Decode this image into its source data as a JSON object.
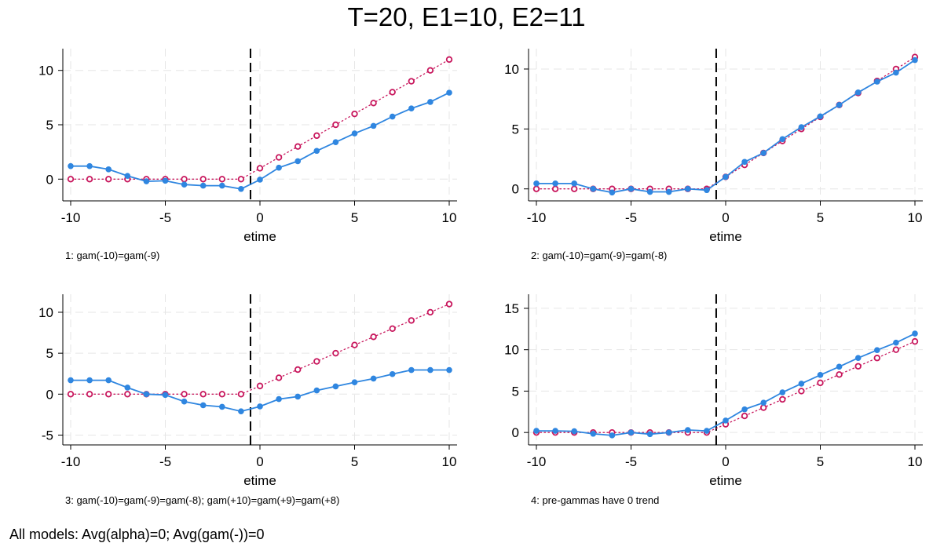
{
  "title": "T=20, E1=10, E2=11",
  "footnote": "All models: Avg(alpha)=0; Avg(gam(-))=0",
  "colors": {
    "estimate": "#2f86e0",
    "truth": "#c8175d",
    "grid": "#e6e6e6",
    "event_line": "#000000"
  },
  "chart_data": [
    {
      "type": "line",
      "note": "1: gam(-10)=gam(-9)",
      "xlabel": "etime",
      "ylabel": "",
      "xlim": [
        -10,
        10
      ],
      "ylim": [
        -2,
        12
      ],
      "xticks": [
        -10,
        -5,
        0,
        5,
        10
      ],
      "yticks": [
        0,
        5,
        10
      ],
      "grid": true,
      "event_line_x": -0.5,
      "x": [
        -10,
        -9,
        -8,
        -7,
        -6,
        -5,
        -4,
        -3,
        -2,
        -1,
        0,
        1,
        2,
        3,
        4,
        5,
        6,
        7,
        8,
        9,
        10
      ],
      "series": [
        {
          "style": "solid-filled",
          "values": [
            1.2,
            1.2,
            0.9,
            0.3,
            -0.2,
            -0.15,
            -0.5,
            -0.6,
            -0.6,
            -0.9,
            -0.05,
            1.05,
            1.65,
            2.6,
            3.4,
            4.2,
            4.9,
            5.75,
            6.5,
            7.1,
            7.95
          ]
        },
        {
          "style": "dotted-hollow",
          "values": [
            0,
            0,
            0,
            0,
            0,
            0,
            0,
            0,
            0,
            0,
            1,
            2,
            3,
            4,
            5,
            6,
            7,
            8,
            9,
            10,
            11
          ]
        }
      ]
    },
    {
      "type": "line",
      "note": "2: gam(-10)=gam(-9)=gam(-8)",
      "xlabel": "etime",
      "ylabel": "",
      "xlim": [
        -10,
        10
      ],
      "ylim": [
        -1,
        11.7
      ],
      "xticks": [
        -10,
        -5,
        0,
        5,
        10
      ],
      "yticks": [
        0,
        5,
        10
      ],
      "grid": true,
      "event_line_x": -0.5,
      "x": [
        -10,
        -9,
        -8,
        -7,
        -6,
        -5,
        -4,
        -3,
        -2,
        -1,
        0,
        1,
        2,
        3,
        4,
        5,
        6,
        7,
        8,
        9,
        10
      ],
      "series": [
        {
          "style": "solid-filled",
          "values": [
            0.45,
            0.45,
            0.45,
            0,
            -0.3,
            0,
            -0.25,
            -0.25,
            0,
            -0.1,
            1,
            2.25,
            3,
            4.15,
            5.15,
            6.05,
            7,
            8.05,
            8.95,
            9.7,
            10.75
          ]
        },
        {
          "style": "dotted-hollow",
          "values": [
            0,
            0,
            0,
            0,
            0,
            0,
            0,
            0,
            0,
            0,
            1,
            2,
            3,
            4,
            5,
            6,
            7,
            8,
            9,
            10,
            11
          ]
        }
      ]
    },
    {
      "type": "line",
      "note": "3: gam(-10)=gam(-9)=gam(-8); gam(+10)=gam(+9)=gam(+8)",
      "xlabel": "etime",
      "ylabel": "",
      "xlim": [
        -10,
        10
      ],
      "ylim": [
        -6.2,
        12.2
      ],
      "xticks": [
        -10,
        -5,
        0,
        5,
        10
      ],
      "yticks": [
        -5,
        0,
        5,
        10
      ],
      "grid": true,
      "event_line_x": -0.5,
      "x": [
        -10,
        -9,
        -8,
        -7,
        -6,
        -5,
        -4,
        -3,
        -2,
        -1,
        0,
        1,
        2,
        3,
        4,
        5,
        6,
        7,
        8,
        9,
        10
      ],
      "series": [
        {
          "style": "solid-filled",
          "values": [
            1.7,
            1.7,
            1.7,
            0.8,
            0,
            -0.1,
            -0.9,
            -1.35,
            -1.55,
            -2.1,
            -1.5,
            -0.6,
            -0.3,
            0.45,
            0.95,
            1.45,
            1.9,
            2.45,
            2.95,
            2.95,
            2.95
          ]
        },
        {
          "style": "dotted-hollow",
          "values": [
            0,
            0,
            0,
            0,
            0,
            0,
            0,
            0,
            0,
            0,
            1,
            2,
            3,
            4,
            5,
            6,
            7,
            8,
            9,
            10,
            11
          ]
        }
      ]
    },
    {
      "type": "line",
      "note": "4: pre-gammas have 0 trend",
      "xlabel": "etime",
      "ylabel": "",
      "xlim": [
        -10,
        10
      ],
      "ylim": [
        -1.5,
        16.7
      ],
      "xticks": [
        -10,
        -5,
        0,
        5,
        10
      ],
      "yticks": [
        0,
        5,
        10,
        15
      ],
      "grid": true,
      "event_line_x": -0.5,
      "x": [
        -10,
        -9,
        -8,
        -7,
        -6,
        -5,
        -4,
        -3,
        -2,
        -1,
        0,
        1,
        2,
        3,
        4,
        5,
        6,
        7,
        8,
        9,
        10
      ],
      "series": [
        {
          "style": "solid-filled",
          "values": [
            0.2,
            0.2,
            0.15,
            -0.15,
            -0.35,
            0,
            -0.2,
            0,
            0.3,
            0.2,
            1.45,
            2.8,
            3.6,
            4.85,
            5.9,
            6.95,
            7.95,
            9,
            9.95,
            10.85,
            11.95
          ]
        },
        {
          "style": "dotted-hollow",
          "values": [
            0,
            0,
            0,
            0,
            0,
            0,
            0,
            0,
            0,
            0,
            1,
            2,
            3,
            4,
            5,
            6,
            7,
            8,
            9,
            10,
            11
          ]
        }
      ]
    }
  ]
}
